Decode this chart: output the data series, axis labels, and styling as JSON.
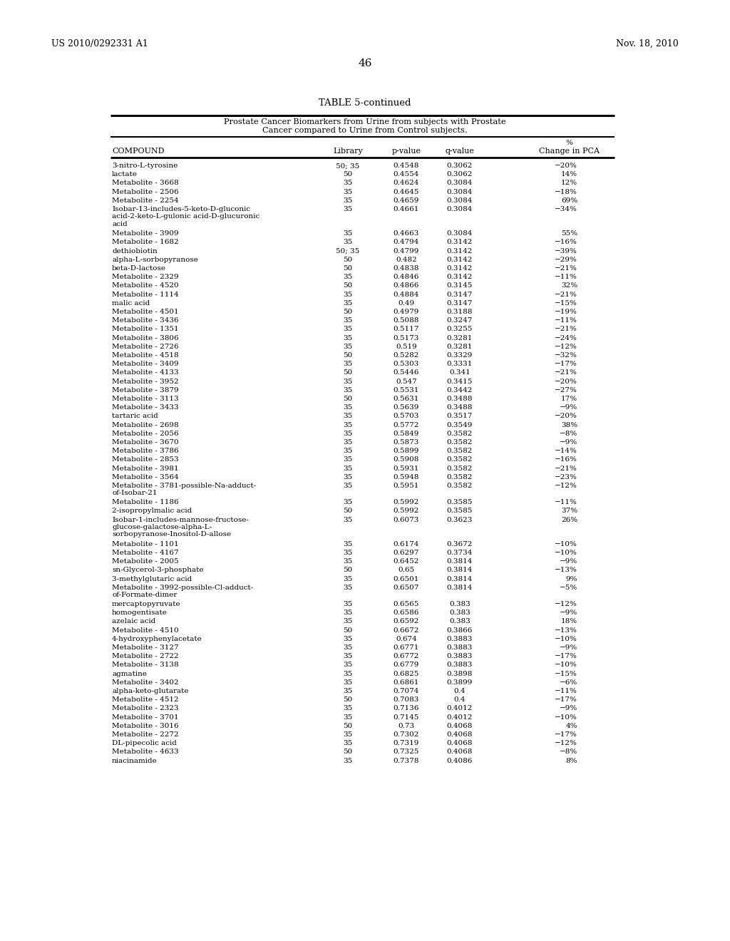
{
  "header_left": "US 2010/0292331 A1",
  "header_right": "Nov. 18, 2010",
  "page_number": "46",
  "table_title": "TABLE 5-continued",
  "table_subtitle1": "Prostate Cancer Biomarkers from Urine from subjects with Prostate",
  "table_subtitle2": "Cancer compared to Urine from Control subjects.",
  "rows": [
    [
      "3-nitro-L-tyrosine",
      "50; 35",
      "0.4548",
      "0.3062",
      "−20%"
    ],
    [
      "lactate",
      "50",
      "0.4554",
      "0.3062",
      "14%"
    ],
    [
      "Metabolite - 3668",
      "35",
      "0.4624",
      "0.3084",
      "12%"
    ],
    [
      "Metabolite - 2506",
      "35",
      "0.4645",
      "0.3084",
      "−18%"
    ],
    [
      "Metabolite - 2254",
      "35",
      "0.4659",
      "0.3084",
      "69%"
    ],
    [
      "Isobar-13-includes-5-keto-D-gluconic\nacid-2-keto-L-gulonic acid-D-glucuronic\nacid",
      "35",
      "0.4661",
      "0.3084",
      "−34%"
    ],
    [
      "Metabolite - 3909",
      "35",
      "0.4663",
      "0.3084",
      "55%"
    ],
    [
      "Metabolite - 1682",
      "35",
      "0.4794",
      "0.3142",
      "−16%"
    ],
    [
      "dethiobiotin",
      "50; 35",
      "0.4799",
      "0.3142",
      "−39%"
    ],
    [
      "alpha-L-sorbopyranose",
      "50",
      "0.482",
      "0.3142",
      "−29%"
    ],
    [
      "beta-D-lactose",
      "50",
      "0.4838",
      "0.3142",
      "−21%"
    ],
    [
      "Metabolite - 2329",
      "35",
      "0.4846",
      "0.3142",
      "−11%"
    ],
    [
      "Metabolite - 4520",
      "50",
      "0.4866",
      "0.3145",
      "32%"
    ],
    [
      "Metabolite - 1114",
      "35",
      "0.4884",
      "0.3147",
      "−21%"
    ],
    [
      "malic acid",
      "35",
      "0.49",
      "0.3147",
      "−15%"
    ],
    [
      "Metabolite - 4501",
      "50",
      "0.4979",
      "0.3188",
      "−19%"
    ],
    [
      "Metabolite - 3436",
      "35",
      "0.5088",
      "0.3247",
      "−11%"
    ],
    [
      "Metabolite - 1351",
      "35",
      "0.5117",
      "0.3255",
      "−21%"
    ],
    [
      "Metabolite - 3806",
      "35",
      "0.5173",
      "0.3281",
      "−24%"
    ],
    [
      "Metabolite - 2726",
      "35",
      "0.519",
      "0.3281",
      "−12%"
    ],
    [
      "Metabolite - 4518",
      "50",
      "0.5282",
      "0.3329",
      "−32%"
    ],
    [
      "Metabolite - 3409",
      "35",
      "0.5303",
      "0.3331",
      "−17%"
    ],
    [
      "Metabolite - 4133",
      "50",
      "0.5446",
      "0.341",
      "−21%"
    ],
    [
      "Metabolite - 3952",
      "35",
      "0.547",
      "0.3415",
      "−20%"
    ],
    [
      "Metabolite - 3879",
      "35",
      "0.5531",
      "0.3442",
      "−27%"
    ],
    [
      "Metabolite - 3113",
      "50",
      "0.5631",
      "0.3488",
      "17%"
    ],
    [
      "Metabolite - 3433",
      "35",
      "0.5639",
      "0.3488",
      "−9%"
    ],
    [
      "tartaric acid",
      "35",
      "0.5703",
      "0.3517",
      "−20%"
    ],
    [
      "Metabolite - 2698",
      "35",
      "0.5772",
      "0.3549",
      "38%"
    ],
    [
      "Metabolite - 2056",
      "35",
      "0.5849",
      "0.3582",
      "−8%"
    ],
    [
      "Metabolite - 3670",
      "35",
      "0.5873",
      "0.3582",
      "−9%"
    ],
    [
      "Metabolite - 3786",
      "35",
      "0.5899",
      "0.3582",
      "−14%"
    ],
    [
      "Metabolite - 2853",
      "35",
      "0.5908",
      "0.3582",
      "−16%"
    ],
    [
      "Metabolite - 3981",
      "35",
      "0.5931",
      "0.3582",
      "−21%"
    ],
    [
      "Metabolite - 3564",
      "35",
      "0.5948",
      "0.3582",
      "−23%"
    ],
    [
      "Metabolite - 3781-possible-Na-adduct-\nof-Isobar-21",
      "35",
      "0.5951",
      "0.3582",
      "−12%"
    ],
    [
      "Metabolite - 1186",
      "35",
      "0.5992",
      "0.3585",
      "−11%"
    ],
    [
      "2-isopropylmalic acid",
      "50",
      "0.5992",
      "0.3585",
      "37%"
    ],
    [
      "Isobar-1-includes-mannose-fructose-\nglucose-galactose-alpha-L-\nsorbopyranose-Inositol-D-allose",
      "35",
      "0.6073",
      "0.3623",
      "26%"
    ],
    [
      "Metabolite - 1101",
      "35",
      "0.6174",
      "0.3672",
      "−10%"
    ],
    [
      "Metabolite - 4167",
      "35",
      "0.6297",
      "0.3734",
      "−10%"
    ],
    [
      "Metabolite - 2005",
      "35",
      "0.6452",
      "0.3814",
      "−9%"
    ],
    [
      "sn-Glycerol-3-phosphate",
      "50",
      "0.65",
      "0.3814",
      "−13%"
    ],
    [
      "3-methylglutaric acid",
      "35",
      "0.6501",
      "0.3814",
      "9%"
    ],
    [
      "Metabolite - 3992-possible-Cl-adduct-\nof-Formate-dimer",
      "35",
      "0.6507",
      "0.3814",
      "−5%"
    ],
    [
      "mercaptopyruvate",
      "35",
      "0.6565",
      "0.383",
      "−12%"
    ],
    [
      "homogentisate",
      "35",
      "0.6586",
      "0.383",
      "−9%"
    ],
    [
      "azelaic acid",
      "35",
      "0.6592",
      "0.383",
      "18%"
    ],
    [
      "Metabolite - 4510",
      "50",
      "0.6672",
      "0.3866",
      "−13%"
    ],
    [
      "4-hydroxyphenylacetate",
      "35",
      "0.674",
      "0.3883",
      "−10%"
    ],
    [
      "Metabolite - 3127",
      "35",
      "0.6771",
      "0.3883",
      "−9%"
    ],
    [
      "Metabolite - 2722",
      "35",
      "0.6772",
      "0.3883",
      "−17%"
    ],
    [
      "Metabolite - 3138",
      "35",
      "0.6779",
      "0.3883",
      "−10%"
    ],
    [
      "agmatine",
      "35",
      "0.6825",
      "0.3898",
      "−15%"
    ],
    [
      "Metabolite - 3402",
      "35",
      "0.6861",
      "0.3899",
      "−6%"
    ],
    [
      "alpha-keto-glutarate",
      "35",
      "0.7074",
      "0.4",
      "−11%"
    ],
    [
      "Metabolite - 4512",
      "50",
      "0.7083",
      "0.4",
      "−17%"
    ],
    [
      "Metabolite - 2323",
      "35",
      "0.7136",
      "0.4012",
      "−9%"
    ],
    [
      "Metabolite - 3701",
      "35",
      "0.7145",
      "0.4012",
      "−10%"
    ],
    [
      "Metabolite - 3016",
      "50",
      "0.73",
      "0.4068",
      "4%"
    ],
    [
      "Metabolite - 2272",
      "35",
      "0.7302",
      "0.4068",
      "−17%"
    ],
    [
      "DL-pipecolic acid",
      "35",
      "0.7319",
      "0.4068",
      "−12%"
    ],
    [
      "Metabolite - 4633",
      "50",
      "0.7325",
      "0.4068",
      "−8%"
    ],
    [
      "niacinamide",
      "35",
      "0.7378",
      "0.4086",
      "8%"
    ]
  ]
}
